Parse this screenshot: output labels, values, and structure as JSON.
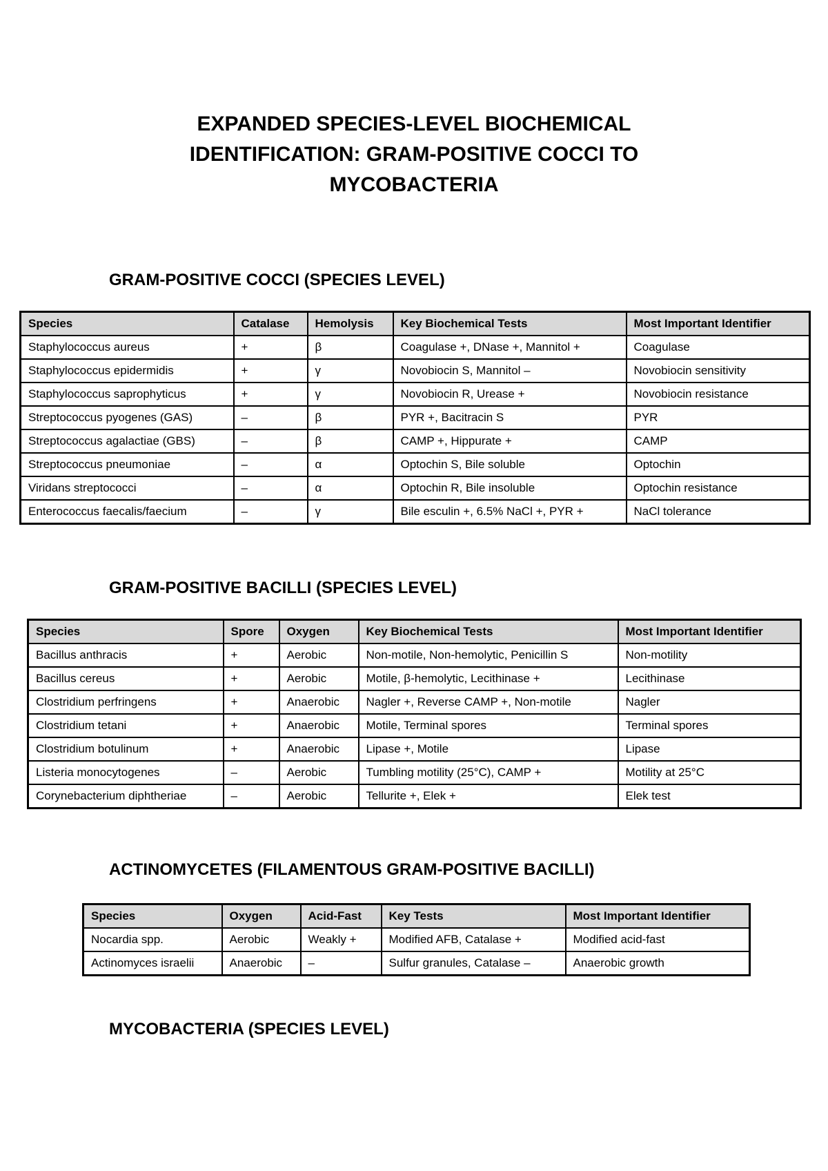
{
  "title": [
    "EXPANDED SPECIES-LEVEL BIOCHEMICAL",
    "IDENTIFICATION: GRAM-POSITIVE COCCI TO",
    "MYCOBACTERIA"
  ],
  "sections": [
    {
      "heading": "GRAM-POSITIVE COCCI (SPECIES LEVEL)",
      "columns": [
        "Species",
        "Catalase",
        "Hemolysis",
        "Key Biochemical Tests",
        "Most Important Identifier"
      ],
      "rows": [
        [
          "Staphylococcus aureus",
          "+",
          "β",
          "Coagulase +, DNase +, Mannitol +",
          "Coagulase"
        ],
        [
          "Staphylococcus epidermidis",
          "+",
          "γ",
          "Novobiocin S, Mannitol –",
          "Novobiocin sensitivity"
        ],
        [
          "Staphylococcus saprophyticus",
          "+",
          "γ",
          "Novobiocin R, Urease +",
          "Novobiocin resistance"
        ],
        [
          "Streptococcus pyogenes (GAS)",
          "–",
          "β",
          "PYR +, Bacitracin S",
          "PYR"
        ],
        [
          "Streptococcus agalactiae (GBS)",
          "–",
          "β",
          "CAMP +, Hippurate +",
          "CAMP"
        ],
        [
          "Streptococcus pneumoniae",
          "–",
          "α",
          "Optochin S, Bile soluble",
          "Optochin"
        ],
        [
          "Viridans streptococci",
          "–",
          "α",
          "Optochin R, Bile insoluble",
          "Optochin resistance"
        ],
        [
          "Enterococcus faecalis/faecium",
          "–",
          "γ",
          "Bile esculin +, 6.5% NaCl +, PYR +",
          "NaCl tolerance"
        ]
      ]
    },
    {
      "heading": "GRAM-POSITIVE BACILLI (SPECIES LEVEL)",
      "columns": [
        "Species",
        "Spore",
        "Oxygen",
        "Key Biochemical Tests",
        "Most Important Identifier"
      ],
      "rows": [
        [
          "Bacillus anthracis",
          "+",
          "Aerobic",
          "Non-motile, Non-hemolytic, Penicillin S",
          "Non-motility"
        ],
        [
          "Bacillus cereus",
          "+",
          "Aerobic",
          "Motile, β-hemolytic, Lecithinase +",
          "Lecithinase"
        ],
        [
          "Clostridium perfringens",
          "+",
          "Anaerobic",
          "Nagler +, Reverse CAMP +, Non-motile",
          "Nagler"
        ],
        [
          "Clostridium tetani",
          "+",
          "Anaerobic",
          "Motile, Terminal spores",
          "Terminal spores"
        ],
        [
          "Clostridium botulinum",
          "+",
          "Anaerobic",
          "Lipase +, Motile",
          "Lipase"
        ],
        [
          "Listeria monocytogenes",
          "–",
          "Aerobic",
          "Tumbling motility (25°C), CAMP +",
          "Motility at 25°C"
        ],
        [
          "Corynebacterium diphtheriae",
          "–",
          "Aerobic",
          "Tellurite +, Elek +",
          "Elek test"
        ]
      ]
    },
    {
      "heading": "ACTINOMYCETES (FILAMENTOUS GRAM-POSITIVE BACILLI)",
      "columns": [
        "Species",
        "Oxygen",
        "Acid-Fast",
        "Key Tests",
        "Most Important Identifier"
      ],
      "rows": [
        [
          "Nocardia spp.",
          "Aerobic",
          "Weakly +",
          "Modified AFB, Catalase +",
          "Modified acid-fast"
        ],
        [
          "Actinomyces israelii",
          "Anaerobic",
          "–",
          "Sulfur granules, Catalase –",
          "Anaerobic growth"
        ]
      ]
    },
    {
      "heading": "MYCOBACTERIA (SPECIES LEVEL)"
    }
  ]
}
